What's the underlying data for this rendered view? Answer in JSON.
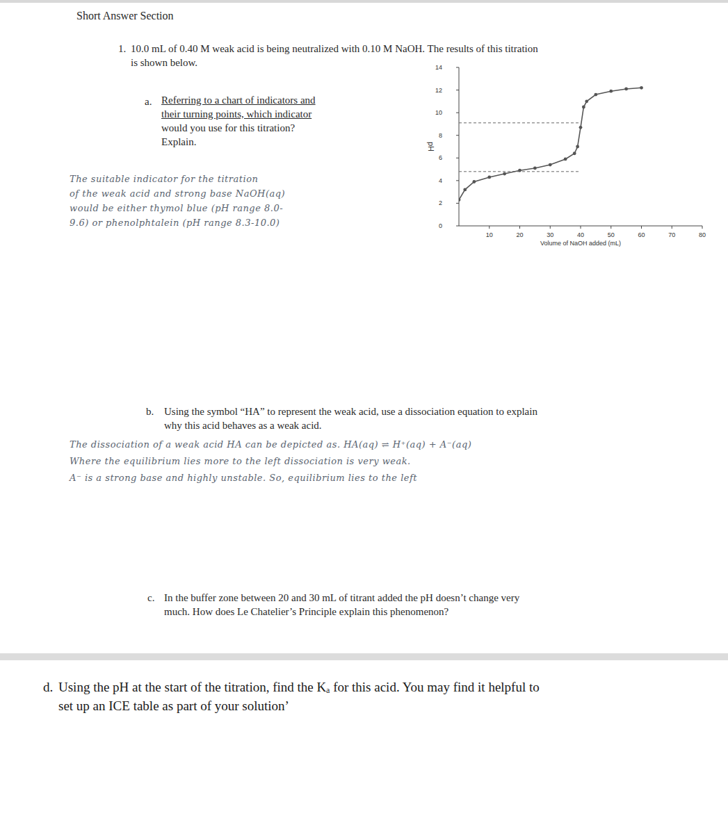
{
  "header": {
    "section": "Short Answer Section"
  },
  "question": {
    "number": "1.",
    "lines": [
      "10.0 mL of 0.40 M weak acid is being neutralized with 0.10 M NaOH. The results of this titration",
      "is shown below."
    ]
  },
  "part_a": {
    "label": "a.",
    "lines": [
      "Referring to a chart of indicators and",
      "their turning points, which indicator",
      "would you use for this titration?",
      "Explain."
    ],
    "answer_lines": [
      "The     suitable indicator for the titration",
      "of the    weak acid and strong base NaOH(aq)",
      "would be     either thymol blue (pH range 8.0-",
      "9.6) or phenolphtalein (pH range 8.3-10.0)"
    ]
  },
  "chart_data": {
    "type": "line",
    "x_label": "Volume of NaOH added (mL)",
    "y_label": "pH",
    "x": [
      0,
      2,
      5,
      10,
      15,
      20,
      25,
      30,
      35,
      38,
      39,
      40,
      41,
      42,
      45,
      50,
      55,
      60
    ],
    "values": [
      2.3,
      3.2,
      3.9,
      4.3,
      4.6,
      4.9,
      5.1,
      5.4,
      5.9,
      6.4,
      7.0,
      8.7,
      10.5,
      11.0,
      11.6,
      11.9,
      12.1,
      12.2
    ],
    "xlim": [
      0,
      80
    ],
    "ylim": [
      0,
      14
    ],
    "xticks": [
      10,
      20,
      30,
      40,
      50,
      60,
      70,
      80
    ],
    "yticks": [
      0,
      2,
      4,
      6,
      8,
      10,
      12,
      14
    ],
    "hlines": [
      9.1,
      4.8
    ],
    "color": "#555555",
    "marker": "circle",
    "grid": false
  },
  "part_b": {
    "label": "b.",
    "lines": [
      "Using the symbol “HA” to represent the weak acid, use a dissociation equation to explain",
      "why this acid behaves as a weak acid."
    ],
    "answer_lines": [
      "The dissociation of a weak acid HA can be depicted as. HA(aq) ⇌ H⁺(aq) + A⁻(aq)",
      "Where the equilibrium lies more to the left dissociation is very weak.",
      "A⁻ is a strong base and highly unstable. So, equilibrium lies to the left"
    ]
  },
  "part_c": {
    "label": "c.",
    "lines": [
      "In the buffer zone between 20 and 30 mL of titrant added the pH doesn’t change very",
      "much. How does Le Chatelier’s Principle explain this phenomenon?"
    ]
  },
  "part_d": {
    "label": "d.",
    "lines": [
      "Using the pH at the start of the titration, find the Kₐ for this acid. You may find it helpful to",
      "set up an ICE table as part of your solution’"
    ]
  }
}
